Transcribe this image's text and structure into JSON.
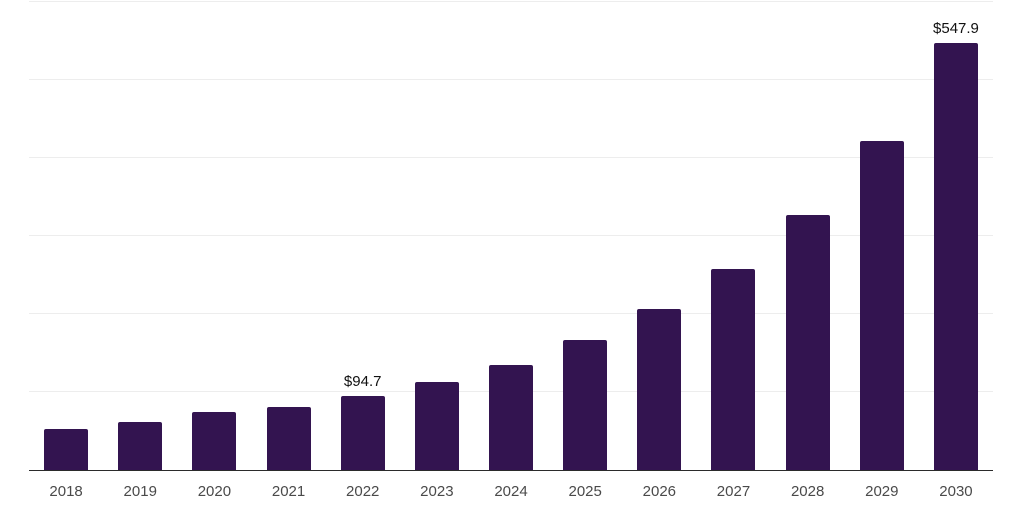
{
  "chart_data": {
    "type": "bar",
    "title": "",
    "categories": [
      "2018",
      "2019",
      "2020",
      "2021",
      "2022",
      "2023",
      "2024",
      "2025",
      "2026",
      "2027",
      "2028",
      "2029",
      "2030"
    ],
    "values": [
      53,
      62,
      75,
      81,
      94.7,
      113,
      135,
      167,
      206,
      258,
      327,
      422,
      547.9
    ],
    "annotations": [
      {
        "category": "2022",
        "label": "$94.7"
      },
      {
        "category": "2030",
        "label": "$547.9"
      }
    ],
    "value_prefix": "$",
    "ylim": [
      0,
      600
    ],
    "gridline_step": 100,
    "grid": true,
    "legend_position": "none",
    "xlabel": "",
    "ylabel": "",
    "colors": {
      "bar": "#331450",
      "gridline": "#ededed",
      "axis": "#2b2b2b",
      "tick_label": "#4a4a4a",
      "value_label": "#111111",
      "background": "#ffffff"
    }
  }
}
